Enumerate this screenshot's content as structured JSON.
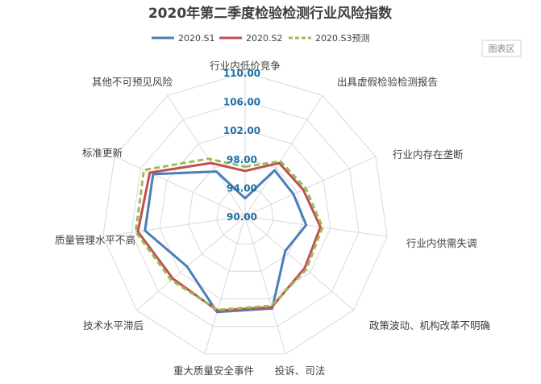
{
  "chart_data": {
    "type": "radar",
    "title": "2020年第二季度检验检测行业风险指数",
    "categories": [
      "行业内低价竞争",
      "出具虚假检验检测报告",
      "行业内存在垄断",
      "行业内供需失调",
      "政策波动、机构改革不明确",
      "投诉、司法",
      "重大质量安全事件",
      "技术水平滞后",
      "质量管理水平不高",
      "标准更新",
      "其他不可预见风险"
    ],
    "rlim": [
      90,
      110
    ],
    "ticks": [
      "90.00",
      "94.00",
      "98.00",
      "102.00",
      "106.00",
      "110.00"
    ],
    "tick_values": [
      90,
      94,
      98,
      102,
      106,
      110
    ],
    "grid": true,
    "legend_position": "top",
    "series": [
      {
        "name": "2020.S1",
        "color": "#4a7ebb",
        "dash": "",
        "values": [
          92.5,
          97.6,
          97.4,
          98.6,
          97.4,
          103.4,
          103.9,
          100.7,
          104.1,
          104.1,
          97.4
        ]
      },
      {
        "name": "2020.S2",
        "color": "#c0504d",
        "dash": "",
        "values": [
          96.3,
          98.8,
          98.9,
          100.6,
          101.0,
          103.2,
          103.7,
          103.3,
          105.1,
          104.6,
          98.8
        ]
      },
      {
        "name": "2020.S3预测",
        "color": "#9bbb59",
        "dash": "7,4",
        "values": [
          96.9,
          99.1,
          99.3,
          100.9,
          101.3,
          103.0,
          103.6,
          103.6,
          105.4,
          105.5,
          99.5
        ]
      }
    ]
  },
  "ui": {
    "chart_area_button": "图表区"
  }
}
